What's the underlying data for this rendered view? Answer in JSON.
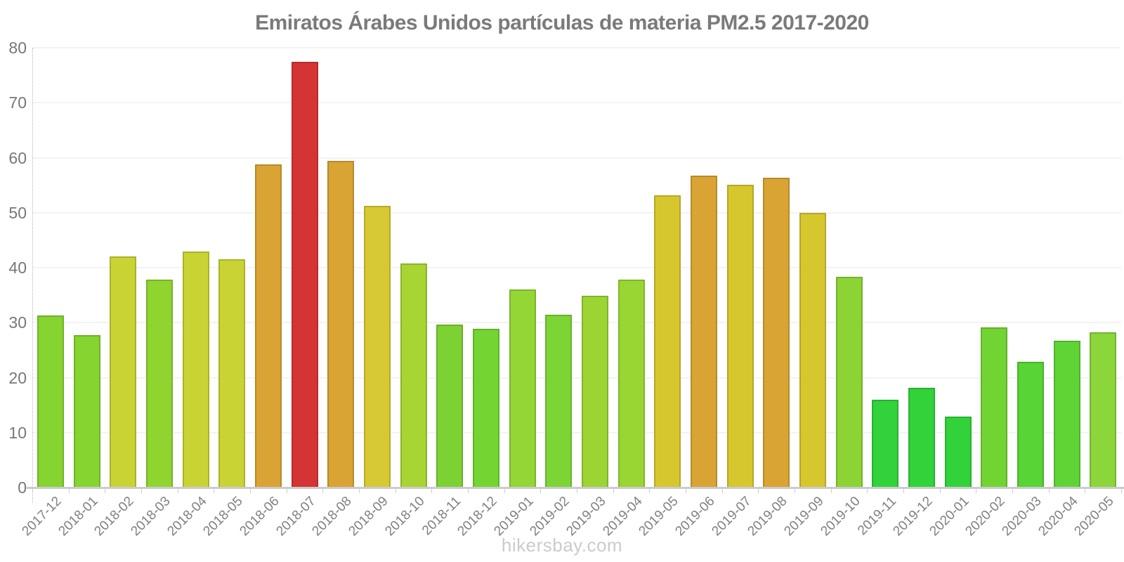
{
  "watermark": "hikersbay.com",
  "chart_data": {
    "type": "bar",
    "title": "Emiratos Árabes Unidos partículas de materia PM2.5 2017-2020",
    "xlabel": "",
    "ylabel": "",
    "ylim": [
      0,
      80
    ],
    "ytick_step": 10,
    "ytick_labels": [
      "0",
      "10",
      "20",
      "30",
      "40",
      "50",
      "60",
      "70",
      "80"
    ],
    "grid": "horizontal",
    "legend": "none",
    "categories": [
      "2017-12",
      "2018-01",
      "2018-02",
      "2018-03",
      "2018-04",
      "2018-05",
      "2018-06",
      "2018-07",
      "2018-08",
      "2018-09",
      "2018-10",
      "2018-11",
      "2018-12",
      "2019-01",
      "2019-02",
      "2019-03",
      "2019-04",
      "2019-05",
      "2019-06",
      "2019-07",
      "2019-08",
      "2019-09",
      "2019-10",
      "2019-11",
      "2019-12",
      "2020-01",
      "2020-02",
      "2020-03",
      "2020-04",
      "2020-05"
    ],
    "values": [
      31.3,
      27.7,
      42.0,
      37.8,
      43.0,
      41.5,
      58.8,
      77.5,
      59.4,
      51.3,
      40.8,
      29.6,
      28.9,
      36.1,
      31.5,
      34.9,
      37.8,
      53.2,
      56.8,
      55.1,
      56.3,
      50.0,
      38.3,
      16.0,
      18.2,
      12.9,
      29.2,
      22.9,
      26.7,
      28.3
    ],
    "bar_colors": [
      "#85d42f",
      "#85d42f",
      "#c9d434",
      "#90d430",
      "#c9d434",
      "#c9d434",
      "#d9a433",
      "#d53434",
      "#d9a433",
      "#d7c933",
      "#a8d434",
      "#7cd232",
      "#74d432",
      "#94d636",
      "#7cd435",
      "#9cd434",
      "#99d633",
      "#d7c72f",
      "#d9a433",
      "#d7c72f",
      "#d9a433",
      "#d7c72f",
      "#8bd434",
      "#32d23a",
      "#32d23a",
      "#32d23a",
      "#72d433",
      "#58d434",
      "#60d436",
      "#8bd63a"
    ],
    "colors_meaning": {
      "green": "#32d23a",
      "yellow_green": "#c9d434",
      "yellow": "#d7c72f",
      "orange": "#d9a433",
      "red": "#d53434"
    }
  }
}
